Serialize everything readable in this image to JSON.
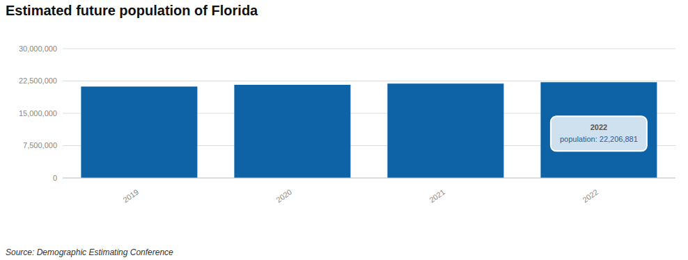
{
  "chart_data": {
    "type": "bar",
    "title": "Estimated future population of Florida",
    "source": "Source: Demographic Estimating Conference",
    "categories": [
      "2019",
      "2020",
      "2021",
      "2022"
    ],
    "values": [
      21208589,
      21596068,
      21898945,
      22206881
    ],
    "color": "#0d63a5",
    "ylim": [
      0,
      30000000
    ],
    "yticks": [
      {
        "value": 0,
        "label": "0"
      },
      {
        "value": 7500000,
        "label": "7,500,000"
      },
      {
        "value": 15000000,
        "label": "15,000,000"
      },
      {
        "value": 22500000,
        "label": "22,500,000"
      },
      {
        "value": 30000000,
        "label": "30,000,000"
      }
    ],
    "grid": true,
    "annotations": [
      {
        "x": "2022",
        "title": "2022",
        "text": "population: 22,206,881"
      }
    ]
  }
}
